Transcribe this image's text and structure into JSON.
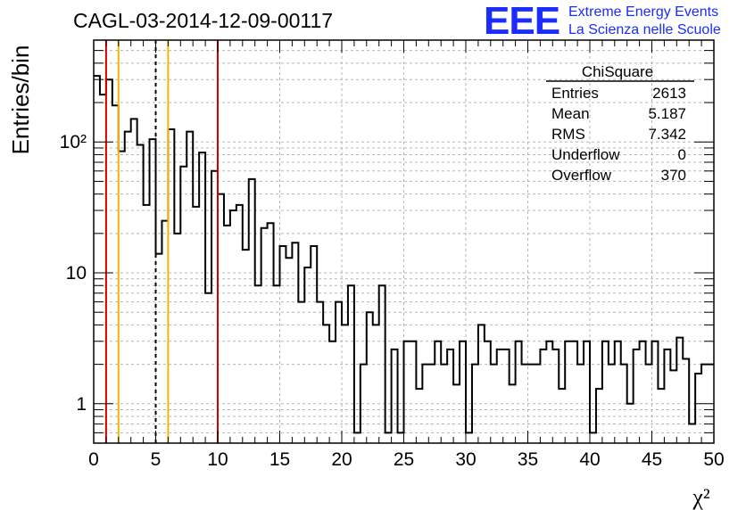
{
  "header": {
    "run_title": "CAGL-03-2014-12-09-00117",
    "logo_mark": "EEE",
    "logo_line1": "Extreme Energy Events",
    "logo_line2": "La Scienza nelle Scuole"
  },
  "stats": {
    "title": "ChiSquare",
    "rows": [
      {
        "label": "Entries",
        "value": "2613"
      },
      {
        "label": "Mean",
        "value": "5.187"
      },
      {
        "label": "RMS",
        "value": "7.342"
      },
      {
        "label": "Underflow",
        "value": "0"
      },
      {
        "label": "Overflow",
        "value": "370"
      }
    ]
  },
  "chart_data": {
    "type": "histogram",
    "title": "CAGL-03-2014-12-09-00117",
    "xlabel": "χ²",
    "ylabel": "Entries/bin",
    "xlim": [
      0,
      50
    ],
    "ylim": [
      0.5,
      600
    ],
    "yscale": "log",
    "grid": true,
    "bin_width": 0.5,
    "x_ticks": [
      "0",
      "5",
      "10",
      "15",
      "20",
      "25",
      "30",
      "35",
      "40",
      "45",
      "50"
    ],
    "y_ticks": [
      {
        "value": 1,
        "label": "1"
      },
      {
        "value": 10,
        "label": "10"
      },
      {
        "value": 100,
        "label": "10²"
      }
    ],
    "bin_contents": [
      320,
      230,
      300,
      190,
      85,
      120,
      150,
      95,
      33,
      105,
      14,
      25,
      125,
      20,
      65,
      120,
      32,
      83,
      7,
      60,
      40,
      23,
      30,
      33,
      15,
      52,
      8,
      22,
      24,
      8,
      16,
      13,
      17,
      6,
      11,
      16,
      6,
      4,
      3,
      6,
      4,
      8,
      0.6,
      2,
      5,
      4,
      8,
      0.6,
      2.6,
      0.6,
      3,
      3,
      1.3,
      2,
      2,
      3,
      2,
      2.6,
      1.4,
      3,
      0.6,
      2,
      4,
      3,
      2,
      2.6,
      2.6,
      1.4,
      3,
      2,
      2,
      2,
      2.6,
      3,
      2.6,
      1.3,
      3,
      3,
      2,
      3,
      0.6,
      1.3,
      3,
      2,
      3,
      2,
      1,
      2.6,
      3,
      2,
      3,
      1.3,
      2.6,
      1.8,
      3.2,
      2.2,
      0.7,
      1.7,
      2,
      2
    ],
    "reference_lines": [
      {
        "x": 1,
        "color": "#d40000",
        "style": "solid"
      },
      {
        "x": 2,
        "color": "#f2b800",
        "style": "solid"
      },
      {
        "x": 5,
        "color": "#000000",
        "style": "dashed"
      },
      {
        "x": 6,
        "color": "#f2b800",
        "style": "solid"
      },
      {
        "x": 10,
        "color": "#d40000",
        "style": "solid"
      }
    ]
  }
}
